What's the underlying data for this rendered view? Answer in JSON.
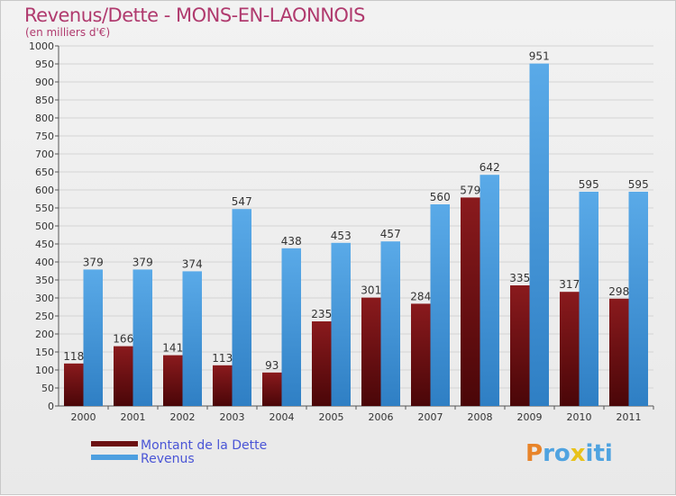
{
  "chart_data": {
    "type": "bar",
    "title": "Revenus/Dette - MONS-EN-LAONNOIS",
    "subtitle": "(en milliers d'€)",
    "categories": [
      "2000",
      "2001",
      "2002",
      "2003",
      "2004",
      "2005",
      "2006",
      "2007",
      "2008",
      "2009",
      "2010",
      "2011"
    ],
    "series": [
      {
        "name": "Montant de la Dette",
        "color": "#7a1416",
        "values": [
          118,
          166,
          141,
          113,
          93,
          235,
          301,
          284,
          579,
          335,
          317,
          298
        ]
      },
      {
        "name": "Revenus",
        "color": "#4d9fe0",
        "values": [
          379,
          379,
          374,
          547,
          438,
          453,
          457,
          560,
          642,
          951,
          595,
          595
        ]
      }
    ],
    "ylim": [
      0,
      1000
    ],
    "ystep": 50,
    "grid": true,
    "legend_position": "bottom-left"
  },
  "legend": {
    "debt_label": "Montant de la Dette",
    "revenue_label": "Revenus"
  },
  "watermark": {
    "letters": [
      "P",
      "r",
      "o",
      "x",
      "i",
      "t",
      "i"
    ],
    "colors": [
      "#e8842a",
      "#4fa3e0",
      "#4fa3e0",
      "#e8c21a",
      "#4fa3e0",
      "#4fa3e0",
      "#4fa3e0"
    ]
  }
}
